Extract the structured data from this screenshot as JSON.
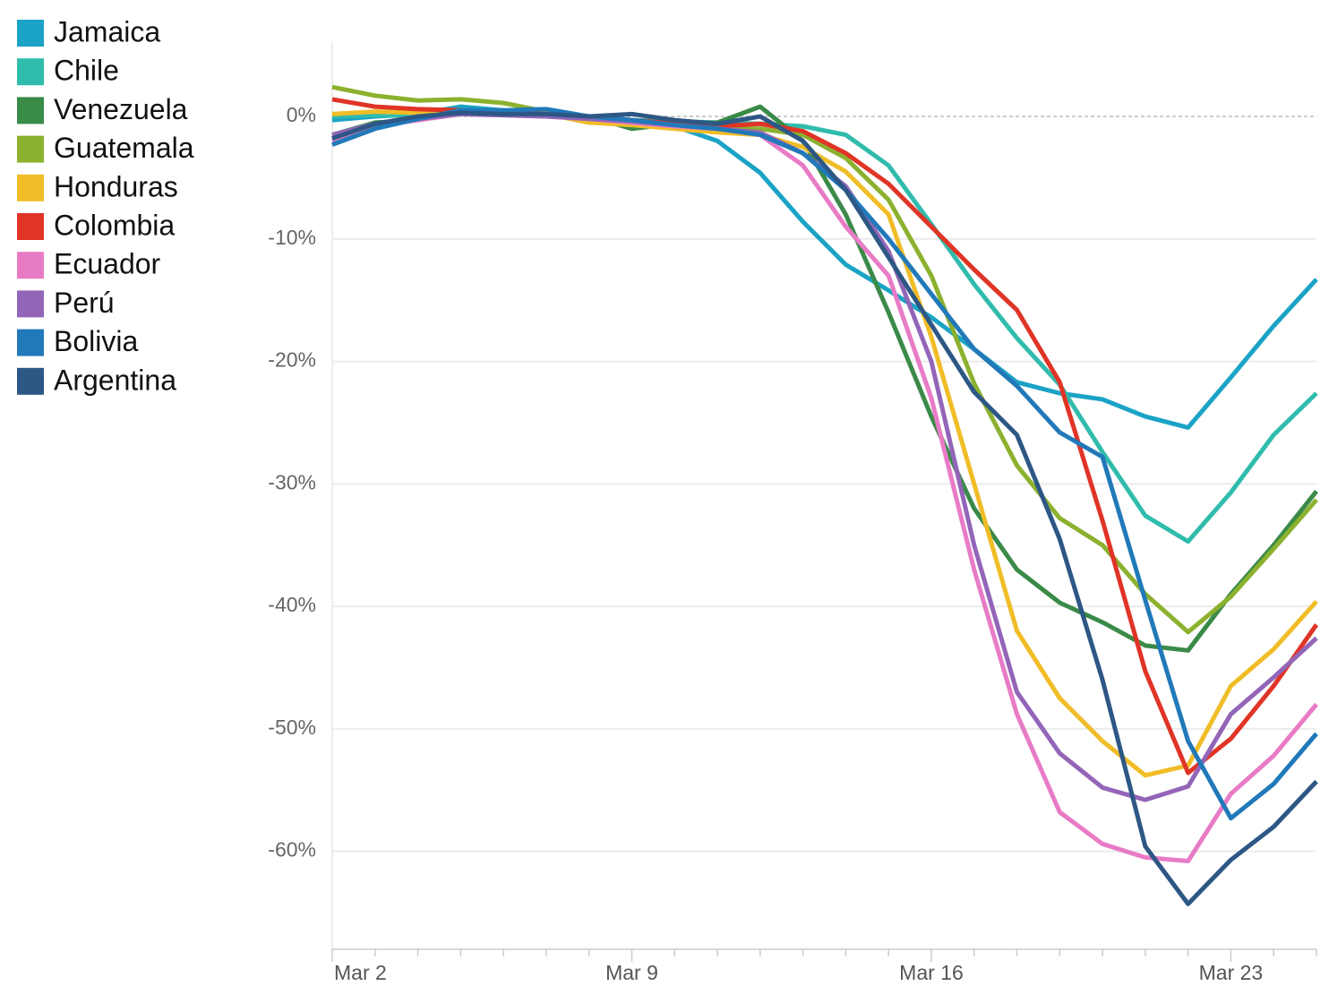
{
  "chart_data": {
    "type": "line",
    "categories": [
      "Mar 2",
      null,
      null,
      null,
      null,
      null,
      null,
      "Mar 9",
      null,
      null,
      null,
      null,
      null,
      null,
      "Mar 16",
      null,
      null,
      null,
      null,
      null,
      null,
      "Mar 23",
      null,
      null
    ],
    "ylim": [
      -68,
      6
    ],
    "yticks": [
      {
        "value": 0,
        "label": "0%"
      },
      {
        "value": -10,
        "label": "-10%"
      },
      {
        "value": -20,
        "label": "-20%"
      },
      {
        "value": -30,
        "label": "-30%"
      },
      {
        "value": -40,
        "label": "-40%"
      },
      {
        "value": -50,
        "label": "-50%"
      },
      {
        "value": -60,
        "label": "-60%"
      }
    ],
    "grid": true,
    "legend": "top-left",
    "series": [
      {
        "name": "Jamaica",
        "color": "#1ba3c6",
        "values": [
          -0.3,
          0,
          0.2,
          0.8,
          0.5,
          0.4,
          0,
          -0.5,
          -0.8,
          -2,
          -4.6,
          -8.6,
          -12.1,
          -14.2,
          -16.4,
          -19,
          -21.7,
          -22.6,
          -23.1,
          -24.5,
          -25.4,
          -21.3,
          -17.1,
          -13.3
        ]
      },
      {
        "name": "Chile",
        "color": "#30bcad",
        "values": [
          0,
          0.1,
          0.1,
          0.2,
          0.2,
          0.1,
          0,
          -0.3,
          -0.4,
          -0.5,
          -0.6,
          -0.8,
          -1.5,
          -4,
          -8.8,
          -13.7,
          -18.1,
          -21.9,
          -27.4,
          -32.6,
          -34.7,
          -30.7,
          -26,
          -22.6
        ]
      },
      {
        "name": "Venezuela",
        "color": "#3a8a48",
        "values": [
          -1.5,
          -0.5,
          -0.3,
          0.3,
          0.3,
          0.2,
          0,
          -1,
          -0.6,
          -0.5,
          0.8,
          -2,
          -8,
          -16,
          -24.5,
          -32,
          -37,
          -39.7,
          -41.3,
          -43.2,
          -43.6,
          -39,
          -35,
          -30.6
        ]
      },
      {
        "name": "Guatemala",
        "color": "#8bb12e",
        "values": [
          2.4,
          1.7,
          1.3,
          1.4,
          1.1,
          0.4,
          0,
          -0.5,
          -0.8,
          -1,
          -1,
          -1.5,
          -3.4,
          -6.8,
          -13,
          -21.8,
          -28.5,
          -32.8,
          -35,
          -39,
          -42.1,
          -39.2,
          -35.3,
          -31.3
        ]
      },
      {
        "name": "Honduras",
        "color": "#f0bd27",
        "values": [
          0.2,
          0.4,
          0.3,
          0.5,
          0.3,
          0.2,
          -0.5,
          -0.7,
          -1,
          -1.3,
          -1.5,
          -2.5,
          -4.5,
          -8,
          -18,
          -30,
          -42,
          -47.5,
          -51,
          -53.8,
          -53,
          -46.5,
          -43.5,
          -39.6
        ]
      },
      {
        "name": "Colombia",
        "color": "#e03426",
        "values": [
          1.4,
          0.8,
          0.6,
          0.5,
          0.3,
          0.2,
          0,
          -0.3,
          -0.6,
          -0.8,
          -0.6,
          -1.2,
          -3,
          -5.5,
          -9,
          -12.5,
          -15.8,
          -21.7,
          -33,
          -45.3,
          -53.6,
          -50.8,
          -46.5,
          -41.5
        ]
      },
      {
        "name": "Ecuador",
        "color": "#e87bc6",
        "values": [
          -2,
          -0.8,
          -0.3,
          0.2,
          0.1,
          0,
          -0.2,
          -0.5,
          -0.8,
          -1,
          -1.5,
          -4,
          -9,
          -13,
          -23,
          -37,
          -48.8,
          -56.8,
          -59.4,
          -60.5,
          -60.8,
          -55.3,
          -52.2,
          -48
        ]
      },
      {
        "name": "Perú",
        "color": "#9365b8",
        "values": [
          -1.5,
          -0.6,
          -0.2,
          0.2,
          0.1,
          0,
          -0.2,
          -0.4,
          -0.7,
          -1,
          -1.3,
          -3,
          -5.7,
          -11,
          -20,
          -35,
          -47,
          -52,
          -54.8,
          -55.8,
          -54.7,
          -48.8,
          -45.8,
          -42.6
        ]
      },
      {
        "name": "Bolivia",
        "color": "#2179b9",
        "values": [
          -2.3,
          -1,
          -0.2,
          0.5,
          0.5,
          0.6,
          0,
          -0.3,
          -0.7,
          -1,
          -1.5,
          -3,
          -6,
          -10,
          -14.5,
          -19,
          -22,
          -25.8,
          -27.8,
          -39.5,
          -51,
          -57.3,
          -54.5,
          -50.4
        ]
      },
      {
        "name": "Argentina",
        "color": "#2d5785",
        "values": [
          -1.8,
          -0.6,
          0,
          0.3,
          0.2,
          0.2,
          0,
          0.2,
          -0.3,
          -0.6,
          0,
          -2,
          -6,
          -11.5,
          -17,
          -22.5,
          -26,
          -34.5,
          -46,
          -59.6,
          -64.3,
          -60.7,
          -58,
          -54.3
        ]
      }
    ]
  }
}
